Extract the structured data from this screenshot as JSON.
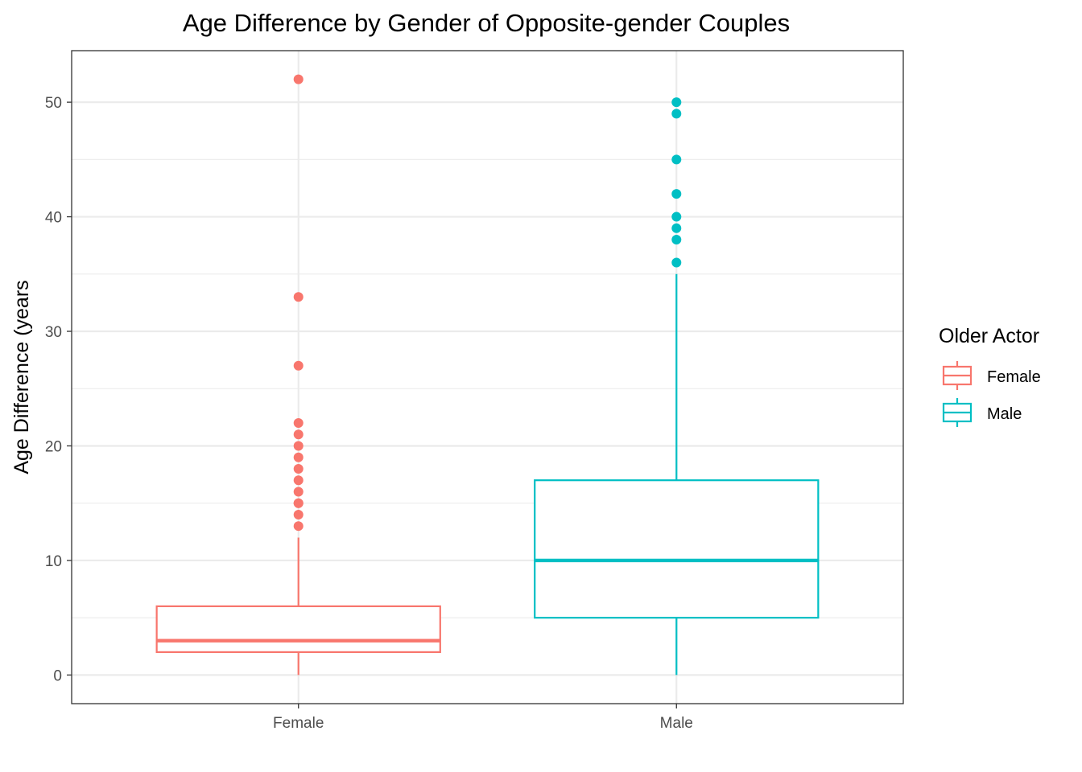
{
  "chart_data": {
    "type": "boxplot",
    "title": "Age Difference by Gender of Opposite-gender Couples",
    "xlabel": "",
    "ylabel": "Age Difference (years",
    "ylim": [
      -2.5,
      54.5
    ],
    "yticks": [
      0,
      10,
      20,
      30,
      40,
      50
    ],
    "grid": true,
    "legend_position": "right",
    "legend_title": "Older Actor",
    "categories": [
      "Female",
      "Male"
    ],
    "series": [
      {
        "name": "Female",
        "color": "#F8766D",
        "whisker_low": 0,
        "q1": 2,
        "median": 3,
        "q3": 6,
        "whisker_high": 12,
        "outliers": [
          13,
          14,
          15,
          15,
          16,
          17,
          18,
          19,
          20,
          21,
          22,
          27,
          33,
          52
        ]
      },
      {
        "name": "Male",
        "color": "#00BFC4",
        "whisker_low": 0,
        "q1": 5,
        "median": 10,
        "q3": 17,
        "whisker_high": 35,
        "outliers": [
          36,
          38,
          39,
          40,
          42,
          45,
          49,
          50
        ]
      }
    ]
  }
}
